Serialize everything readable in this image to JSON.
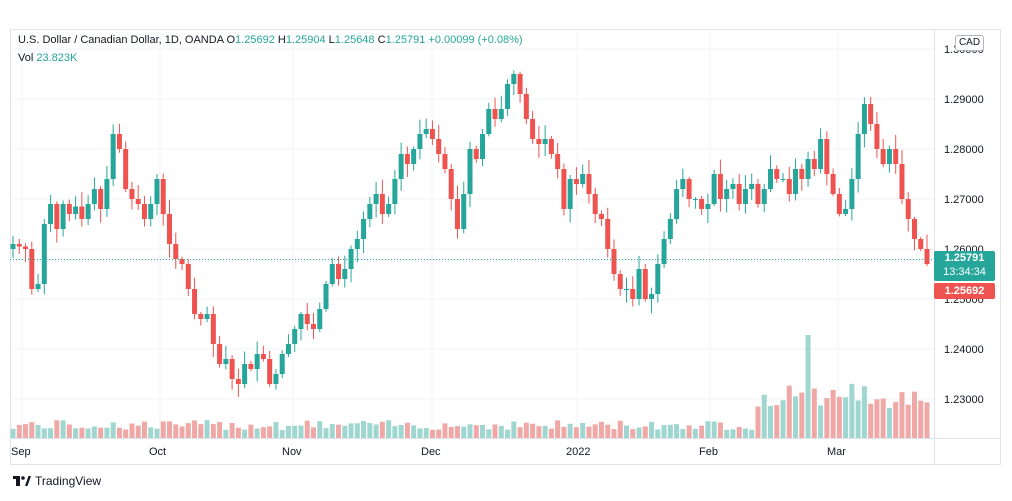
{
  "header": {
    "symbol": "U.S. Dollar / Canadian Dollar, 1D, OANDA",
    "o_label": "O",
    "o_value": "1.25692",
    "h_label": "H",
    "h_value": "1.25904",
    "l_label": "L",
    "l_value": "1.25648",
    "c_label": "C",
    "c_value": "1.25791",
    "change": "+0.00099 (+0.08%)",
    "vol_label": "Vol",
    "vol_value": "23.823K"
  },
  "currency": "CAD",
  "last_price": {
    "price": "1.25791",
    "countdown": "13:34:34"
  },
  "open_price": "1.25692",
  "brand": "TradingView",
  "colors": {
    "up": "#26a69a",
    "down": "#ef5350",
    "vol_up": "#9fd6cf",
    "vol_down": "#f0a8a6"
  },
  "chart_data": {
    "type": "candlestick",
    "y_axis": {
      "ticks": [
        "1.30000",
        "1.29000",
        "1.28000",
        "1.27000",
        "1.26000",
        "1.25000",
        "1.24000",
        "1.23000"
      ],
      "range": [
        1.222,
        1.303
      ]
    },
    "x_axis": {
      "labels": [
        "Sep",
        "Oct",
        "Nov",
        "Dec",
        "2022",
        "Feb",
        "Mar"
      ]
    },
    "close_path": [
      1.261,
      1.2605,
      1.26,
      1.252,
      1.253,
      1.265,
      1.269,
      1.264,
      1.269,
      1.267,
      1.2685,
      1.266,
      1.269,
      1.272,
      1.268,
      1.274,
      1.283,
      1.28,
      1.272,
      1.27,
      1.269,
      1.266,
      1.269,
      1.274,
      1.267,
      1.261,
      1.258,
      1.257,
      1.252,
      1.247,
      1.246,
      1.247,
      1.241,
      1.237,
      1.238,
      1.234,
      1.233,
      1.237,
      1.236,
      1.239,
      1.238,
      1.233,
      1.235,
      1.239,
      1.241,
      1.244,
      1.247,
      1.245,
      1.244,
      1.248,
      1.253,
      1.257,
      1.254,
      1.256,
      1.26,
      1.262,
      1.266,
      1.269,
      1.271,
      1.267,
      1.269,
      1.274,
      1.279,
      1.277,
      1.28,
      1.283,
      1.284,
      1.282,
      1.279,
      1.276,
      1.27,
      1.264,
      1.271,
      1.28,
      1.278,
      1.283,
      1.288,
      1.286,
      1.288,
      1.293,
      1.295,
      1.291,
      1.286,
      1.282,
      1.281,
      1.282,
      1.279,
      1.276,
      1.268,
      1.274,
      1.273,
      1.275,
      1.271,
      1.267,
      1.266,
      1.26,
      1.255,
      1.252,
      1.252,
      1.25,
      1.256,
      1.25,
      1.251,
      1.257,
      1.262,
      1.266,
      1.272,
      1.274,
      1.27,
      1.27,
      1.268,
      1.269,
      1.275,
      1.27,
      1.272,
      1.273,
      1.269,
      1.272,
      1.273,
      1.269,
      1.272,
      1.276,
      1.274,
      1.274,
      1.271,
      1.276,
      1.274,
      1.278,
      1.276,
      1.282,
      1.275,
      1.271,
      1.267,
      1.268,
      1.274,
      1.283,
      1.289,
      1.285,
      1.28,
      1.277,
      1.28,
      1.277,
      1.27,
      1.266,
      1.262,
      1.26,
      1.257
    ]
  }
}
